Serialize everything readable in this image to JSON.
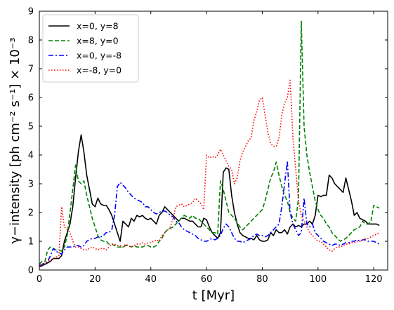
{
  "chart_data": {
    "type": "line",
    "xlabel": "t [Myr]",
    "ylabel": "γ−intensity [ph cm⁻² s⁻¹] × 10⁻³",
    "xlim": [
      0,
      125
    ],
    "ylim": [
      0,
      9
    ],
    "xticks": [
      0,
      20,
      40,
      60,
      80,
      100,
      120
    ],
    "yticks": [
      0,
      1,
      2,
      3,
      4,
      5,
      6,
      7,
      8,
      9
    ],
    "grid": false,
    "legend_position": "top-left",
    "series": [
      {
        "name": "x=0, y=8",
        "color": "#000000",
        "dash": "solid",
        "x": [
          0,
          1,
          2,
          3,
          4,
          5,
          6,
          7,
          8,
          9,
          10,
          11,
          12,
          13,
          14,
          15,
          16,
          17,
          18,
          19,
          20,
          21,
          22,
          23,
          24,
          25,
          26,
          27,
          28,
          29,
          30,
          31,
          32,
          33,
          34,
          35,
          36,
          37,
          38,
          39,
          40,
          41,
          42,
          43,
          44,
          45,
          46,
          47,
          48,
          49,
          50,
          51,
          52,
          53,
          54,
          55,
          56,
          57,
          58,
          59,
          60,
          61,
          62,
          63,
          64,
          65,
          66,
          67,
          68,
          69,
          70,
          71,
          72,
          73,
          74,
          75,
          76,
          77,
          78,
          79,
          80,
          81,
          82,
          83,
          84,
          85,
          86,
          87,
          88,
          89,
          90,
          91,
          92,
          93,
          94,
          95,
          96,
          97,
          98,
          99,
          100,
          101,
          102,
          103,
          104,
          105,
          106,
          107,
          108,
          109,
          110,
          111,
          112,
          113,
          114,
          115,
          116,
          117,
          118,
          119,
          120,
          121,
          122
        ],
        "y": [
          0.1,
          0.15,
          0.2,
          0.25,
          0.3,
          0.4,
          0.4,
          0.4,
          0.5,
          1.0,
          1.3,
          1.6,
          2.2,
          3.2,
          4.1,
          4.7,
          4.1,
          3.3,
          2.8,
          2.3,
          2.2,
          2.5,
          2.3,
          2.25,
          2.25,
          2.1,
          1.9,
          1.6,
          1.3,
          1.0,
          1.7,
          1.6,
          1.5,
          1.8,
          1.7,
          1.9,
          1.85,
          1.9,
          1.8,
          1.75,
          1.8,
          1.7,
          1.6,
          1.9,
          2.0,
          2.2,
          2.1,
          2.0,
          1.9,
          1.8,
          1.7,
          1.8,
          1.8,
          1.75,
          1.7,
          1.7,
          1.6,
          1.5,
          1.5,
          1.8,
          1.75,
          1.5,
          1.3,
          1.2,
          1.1,
          1.3,
          3.4,
          3.55,
          3.5,
          2.6,
          2.0,
          1.6,
          1.3,
          1.2,
          1.15,
          1.1,
          1.1,
          1.05,
          1.2,
          1.05,
          1.0,
          1.0,
          1.05,
          1.3,
          1.2,
          1.4,
          1.3,
          1.3,
          1.4,
          1.25,
          1.5,
          1.6,
          1.5,
          1.55,
          1.5,
          1.6,
          1.6,
          1.7,
          1.6,
          1.9,
          2.6,
          2.55,
          2.6,
          2.6,
          3.3,
          3.2,
          3.0,
          2.9,
          2.8,
          2.7,
          3.2,
          2.8,
          2.4,
          1.9,
          2.0,
          1.8,
          1.75,
          1.7,
          1.6,
          1.6,
          1.6,
          1.6,
          1.55
        ]
      },
      {
        "name": "x=8, y=0",
        "color": "#008000",
        "dash": "dashed",
        "x": [
          0,
          1,
          2,
          3,
          4,
          5,
          6,
          7,
          8,
          9,
          10,
          11,
          12,
          13,
          14,
          15,
          16,
          17,
          18,
          19,
          20,
          21,
          22,
          23,
          24,
          25,
          26,
          27,
          28,
          29,
          30,
          31,
          32,
          33,
          34,
          35,
          36,
          37,
          38,
          39,
          40,
          41,
          42,
          43,
          44,
          45,
          46,
          47,
          48,
          49,
          50,
          51,
          52,
          53,
          54,
          55,
          56,
          57,
          58,
          59,
          60,
          61,
          62,
          63,
          64,
          65,
          66,
          67,
          68,
          69,
          70,
          71,
          72,
          73,
          74,
          75,
          76,
          77,
          78,
          79,
          80,
          81,
          82,
          83,
          84,
          85,
          86,
          87,
          88,
          89,
          90,
          91,
          92,
          93,
          94,
          95,
          96,
          97,
          98,
          99,
          100,
          101,
          102,
          103,
          104,
          105,
          106,
          107,
          108,
          109,
          110,
          111,
          112,
          113,
          114,
          115,
          116,
          117,
          118,
          119,
          120,
          121,
          122
        ],
        "y": [
          0.2,
          0.3,
          0.3,
          0.7,
          0.8,
          0.75,
          0.7,
          0.7,
          0.65,
          0.8,
          1.2,
          2.0,
          2.8,
          3.65,
          3.1,
          3.0,
          3.1,
          2.6,
          2.2,
          1.8,
          1.5,
          1.2,
          1.05,
          1.0,
          1.0,
          0.9,
          0.9,
          0.85,
          0.8,
          0.8,
          0.8,
          0.85,
          0.85,
          0.8,
          0.85,
          0.8,
          0.8,
          0.8,
          0.85,
          0.85,
          0.8,
          0.8,
          0.85,
          1.0,
          1.1,
          1.3,
          1.4,
          1.45,
          1.5,
          1.6,
          1.7,
          1.8,
          1.9,
          1.85,
          1.8,
          1.9,
          1.8,
          1.8,
          1.7,
          1.6,
          1.5,
          1.4,
          1.3,
          1.3,
          1.25,
          3.1,
          2.8,
          2.4,
          2.0,
          1.9,
          1.8,
          1.65,
          1.5,
          1.4,
          1.5,
          1.6,
          1.7,
          1.8,
          1.9,
          2.0,
          2.1,
          2.4,
          2.8,
          3.2,
          3.4,
          3.75,
          3.3,
          2.9,
          2.6,
          2.4,
          2.0,
          1.8,
          1.7,
          2.5,
          8.65,
          5.0,
          4.0,
          3.4,
          2.9,
          2.4,
          2.1,
          1.9,
          1.8,
          1.6,
          1.5,
          1.3,
          1.2,
          1.1,
          1.0,
          1.05,
          1.1,
          1.2,
          1.3,
          1.4,
          1.45,
          1.5,
          1.7,
          1.6,
          1.6,
          1.7,
          2.25,
          2.2,
          2.15
        ]
      },
      {
        "name": "x=0, y=-8",
        "color": "#0000ff",
        "dash": "dashdot",
        "x": [
          0,
          1,
          2,
          3,
          4,
          5,
          6,
          7,
          8,
          9,
          10,
          11,
          12,
          13,
          14,
          15,
          16,
          17,
          18,
          19,
          20,
          21,
          22,
          23,
          24,
          25,
          26,
          27,
          28,
          29,
          30,
          31,
          32,
          33,
          34,
          35,
          36,
          37,
          38,
          39,
          40,
          41,
          42,
          43,
          44,
          45,
          46,
          47,
          48,
          49,
          50,
          51,
          52,
          53,
          54,
          55,
          56,
          57,
          58,
          59,
          60,
          61,
          62,
          63,
          64,
          65,
          66,
          67,
          68,
          69,
          70,
          71,
          72,
          73,
          74,
          75,
          76,
          77,
          78,
          79,
          80,
          81,
          82,
          83,
          84,
          85,
          86,
          87,
          88,
          89,
          90,
          91,
          92,
          93,
          94,
          95,
          96,
          97,
          98,
          99,
          100,
          101,
          102,
          103,
          104,
          105,
          106,
          107,
          108,
          109,
          110,
          111,
          112,
          113,
          114,
          115,
          116,
          117,
          118,
          119,
          120,
          121,
          122
        ],
        "y": [
          0.15,
          0.2,
          0.25,
          0.3,
          0.5,
          0.75,
          0.65,
          0.6,
          0.55,
          0.7,
          0.8,
          0.8,
          0.8,
          0.85,
          0.85,
          0.8,
          0.85,
          1.0,
          1.05,
          1.1,
          1.1,
          1.15,
          1.15,
          1.2,
          1.3,
          1.3,
          1.4,
          1.9,
          2.9,
          3.05,
          2.95,
          2.85,
          2.7,
          2.6,
          2.5,
          2.45,
          2.4,
          2.35,
          2.2,
          2.2,
          2.1,
          2.0,
          1.95,
          2.0,
          2.05,
          2.05,
          2.0,
          1.9,
          1.85,
          1.7,
          1.65,
          1.5,
          1.4,
          1.35,
          1.3,
          1.25,
          1.2,
          1.1,
          1.05,
          1.0,
          1.0,
          1.05,
          1.1,
          1.05,
          1.1,
          1.2,
          1.45,
          1.6,
          1.5,
          1.3,
          1.1,
          1.0,
          1.0,
          0.95,
          1.0,
          1.05,
          1.1,
          1.2,
          1.25,
          1.2,
          1.2,
          1.15,
          1.2,
          1.3,
          1.4,
          1.5,
          1.6,
          2.2,
          3.0,
          3.8,
          2.0,
          1.6,
          1.4,
          1.2,
          1.3,
          2.5,
          1.6,
          1.5,
          1.6,
          1.3,
          1.2,
          1.1,
          1.0,
          0.95,
          0.9,
          0.85,
          0.9,
          0.9,
          0.85,
          0.9,
          0.95,
          0.95,
          1.0,
          1.0,
          1.05,
          1.0,
          1.05,
          1.05,
          1.0,
          1.0,
          1.0,
          0.95,
          0.9
        ]
      },
      {
        "name": "x=-8, y=0",
        "color": "#ff0000",
        "dash": "dotted",
        "x": [
          0,
          1,
          2,
          3,
          4,
          5,
          6,
          7,
          8,
          9,
          10,
          11,
          12,
          13,
          14,
          15,
          16,
          17,
          18,
          19,
          20,
          21,
          22,
          23,
          24,
          25,
          26,
          27,
          28,
          29,
          30,
          31,
          32,
          33,
          34,
          35,
          36,
          37,
          38,
          39,
          40,
          41,
          42,
          43,
          44,
          45,
          46,
          47,
          48,
          49,
          50,
          51,
          52,
          53,
          54,
          55,
          56,
          57,
          58,
          59,
          60,
          61,
          62,
          63,
          64,
          65,
          66,
          67,
          68,
          69,
          70,
          71,
          72,
          73,
          74,
          75,
          76,
          77,
          78,
          79,
          80,
          81,
          82,
          83,
          84,
          85,
          86,
          87,
          88,
          89,
          90,
          91,
          92,
          93,
          94,
          95,
          96,
          97,
          98,
          99,
          100,
          101,
          102,
          103,
          104,
          105,
          106,
          107,
          108,
          109,
          110,
          111,
          112,
          113,
          114,
          115,
          116,
          117,
          118,
          119,
          120,
          121,
          122
        ],
        "y": [
          0.1,
          0.2,
          0.25,
          0.3,
          0.35,
          0.4,
          0.45,
          0.5,
          2.2,
          1.5,
          1.4,
          1.3,
          1.0,
          0.8,
          0.8,
          0.75,
          0.7,
          0.7,
          0.75,
          0.8,
          0.75,
          0.7,
          0.75,
          0.75,
          0.7,
          0.8,
          0.9,
          0.9,
          0.85,
          0.85,
          0.8,
          0.9,
          0.85,
          0.8,
          0.85,
          0.9,
          0.9,
          0.95,
          0.9,
          0.95,
          0.95,
          1.0,
          1.05,
          1.0,
          1.2,
          1.3,
          1.4,
          1.5,
          1.8,
          2.2,
          2.25,
          2.3,
          2.2,
          2.25,
          2.3,
          2.35,
          2.5,
          2.4,
          2.3,
          2.1,
          4.0,
          3.9,
          3.95,
          3.9,
          4.0,
          4.2,
          4.0,
          3.8,
          3.6,
          3.5,
          3.0,
          3.2,
          3.8,
          4.1,
          4.3,
          4.5,
          4.6,
          5.2,
          5.5,
          5.9,
          6.0,
          5.4,
          4.8,
          4.4,
          4.3,
          4.3,
          4.6,
          5.4,
          5.8,
          6.0,
          6.6,
          4.6,
          3.5,
          2.4,
          1.9,
          1.7,
          1.5,
          1.3,
          1.2,
          1.1,
          1.0,
          1.0,
          0.9,
          0.8,
          0.7,
          0.65,
          0.75,
          0.8,
          0.8,
          0.85,
          0.9,
          0.9,
          0.95,
          0.95,
          1.0,
          1.0,
          1.05,
          1.1,
          1.1,
          1.15,
          1.2,
          1.25,
          1.3
        ]
      }
    ]
  }
}
